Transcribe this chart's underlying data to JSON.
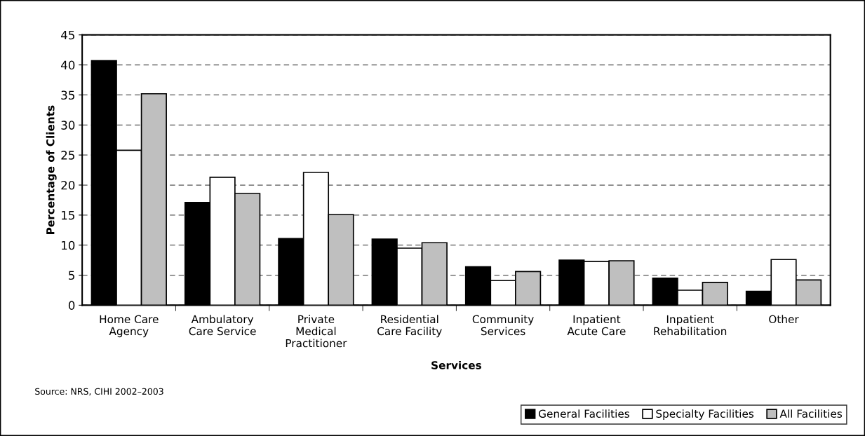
{
  "chart_data": {
    "type": "bar",
    "categories": [
      "Home Care\nAgency",
      "Ambulatory\nCare Service",
      "Private\nMedical\nPractitioner",
      "Residential\nCare Facility",
      "Community\nServices",
      "Inpatient\nAcute Care",
      "Inpatient\nRehabilitation",
      "Other"
    ],
    "series": [
      {
        "name": "General Facilities",
        "color": "#000000",
        "values": [
          40.7,
          17.1,
          11.1,
          11.0,
          6.4,
          7.5,
          4.5,
          2.3
        ]
      },
      {
        "name": "Specialty Facilities",
        "color": "#ffffff",
        "values": [
          25.8,
          21.3,
          22.1,
          9.5,
          4.1,
          7.3,
          2.5,
          7.6
        ]
      },
      {
        "name": "All Facilities",
        "color": "#bfbfbf",
        "values": [
          35.2,
          18.6,
          15.1,
          10.4,
          5.6,
          7.4,
          3.8,
          4.2
        ]
      }
    ],
    "xlabel": "Services",
    "ylabel": "Percentage of Clients",
    "ylim": [
      0,
      45
    ],
    "yticks": [
      0,
      5,
      10,
      15,
      20,
      25,
      30,
      35,
      40,
      45
    ],
    "grid": "y",
    "legend": "bottom right",
    "annotations": [
      "Source: NRS, CIHI 2002–2003"
    ]
  }
}
